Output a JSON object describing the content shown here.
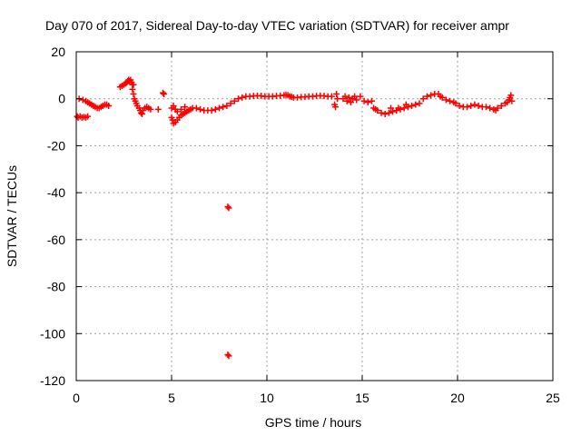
{
  "chart_data": {
    "type": "scatter",
    "title": "Day 070 of 2017, Sidereal Day-to-day VTEC variation (SDTVAR) for receiver ampr",
    "xlabel": "GPS time / hours",
    "ylabel": "SDTVAR / TECUs",
    "xlim": [
      0,
      25
    ],
    "ylim": [
      -120,
      20
    ],
    "x_ticks": [
      0,
      5,
      10,
      15,
      20,
      25
    ],
    "y_ticks": [
      20,
      0,
      -20,
      -40,
      -60,
      -80,
      -100,
      -120
    ],
    "x_tick_labels": [
      "0",
      "5",
      "10",
      "15",
      "20",
      "25"
    ],
    "y_tick_labels": [
      "20",
      "0",
      "-20",
      "-40",
      "-60",
      "-80",
      "-100",
      "-120"
    ],
    "grid": true,
    "marker": "plus",
    "color": "#ff0000",
    "series": [
      {
        "name": "SDTVAR",
        "points": [
          [
            0.05,
            -7.5
          ],
          [
            0.1,
            -8
          ],
          [
            0.15,
            0
          ],
          [
            0.2,
            -7.5
          ],
          [
            0.3,
            -8
          ],
          [
            0.4,
            -7.8
          ],
          [
            0.5,
            -8
          ],
          [
            0.6,
            -7.5
          ],
          [
            0.35,
            -0.5
          ],
          [
            0.5,
            -1
          ],
          [
            0.6,
            -1.5
          ],
          [
            0.7,
            -2
          ],
          [
            0.8,
            -2.5
          ],
          [
            0.9,
            -3
          ],
          [
            1.0,
            -3.5
          ],
          [
            1.1,
            -4
          ],
          [
            1.2,
            -4
          ],
          [
            1.3,
            -3.5
          ],
          [
            1.4,
            -3
          ],
          [
            1.5,
            -2.5
          ],
          [
            1.6,
            -2.5
          ],
          [
            1.7,
            -3
          ],
          [
            2.3,
            5
          ],
          [
            2.4,
            5.5
          ],
          [
            2.5,
            6
          ],
          [
            2.6,
            6.5
          ],
          [
            2.65,
            7
          ],
          [
            2.7,
            7.5
          ],
          [
            2.75,
            8
          ],
          [
            2.8,
            7.5
          ],
          [
            2.85,
            8
          ],
          [
            2.9,
            7
          ],
          [
            2.95,
            6
          ],
          [
            3.0,
            6
          ],
          [
            2.95,
            4
          ],
          [
            3.0,
            2
          ],
          [
            3.05,
            0
          ],
          [
            3.1,
            -1
          ],
          [
            3.15,
            -2
          ],
          [
            3.2,
            -3
          ],
          [
            3.3,
            -4
          ],
          [
            3.35,
            -5
          ],
          [
            3.4,
            -6
          ],
          [
            3.45,
            -6.5
          ],
          [
            3.5,
            -5
          ],
          [
            3.6,
            -4
          ],
          [
            3.7,
            -3.5
          ],
          [
            3.8,
            -4
          ],
          [
            3.9,
            -4.5
          ],
          [
            4.3,
            -4.5
          ],
          [
            4.55,
            2.5
          ],
          [
            4.6,
            2
          ],
          [
            5.0,
            -8
          ],
          [
            5.05,
            -9
          ],
          [
            5.1,
            -10.5
          ],
          [
            5.2,
            -10
          ],
          [
            5.3,
            -9
          ],
          [
            5.4,
            -8
          ],
          [
            5.5,
            -7
          ],
          [
            5.6,
            -6.5
          ],
          [
            5.7,
            -6
          ],
          [
            5.8,
            -5.5
          ],
          [
            5.9,
            -5
          ],
          [
            6.0,
            -4.5
          ],
          [
            6.1,
            -4
          ],
          [
            5.0,
            -4
          ],
          [
            5.1,
            -3
          ],
          [
            5.2,
            -4.5
          ],
          [
            5.3,
            -5.5
          ],
          [
            5.5,
            -4.5
          ],
          [
            5.7,
            -3.5
          ],
          [
            6.3,
            -4
          ],
          [
            6.5,
            -4.5
          ],
          [
            6.7,
            -5
          ],
          [
            6.9,
            -5
          ],
          [
            7.1,
            -5
          ],
          [
            7.3,
            -4.5
          ],
          [
            7.5,
            -4
          ],
          [
            7.7,
            -3.5
          ],
          [
            7.9,
            -3
          ],
          [
            8.1,
            -2
          ],
          [
            8.3,
            -1
          ],
          [
            8.5,
            0
          ],
          [
            8.7,
            0.5
          ],
          [
            8.9,
            1
          ],
          [
            8.0,
            -46.5
          ],
          [
            7.95,
            -46
          ],
          [
            8.0,
            -109.5
          ],
          [
            7.95,
            -109
          ],
          [
            9.1,
            1
          ],
          [
            9.3,
            1.2
          ],
          [
            9.5,
            1.3
          ],
          [
            9.7,
            1.2
          ],
          [
            9.9,
            1
          ],
          [
            10.1,
            1
          ],
          [
            10.3,
            1
          ],
          [
            10.5,
            1.2
          ],
          [
            10.7,
            1.3
          ],
          [
            10.9,
            1.5
          ],
          [
            11.0,
            1.7
          ],
          [
            11.1,
            1.5
          ],
          [
            11.2,
            1
          ],
          [
            11.3,
            0.8
          ],
          [
            11.4,
            0.5
          ],
          [
            11.6,
            0.5
          ],
          [
            11.8,
            0.7
          ],
          [
            12.0,
            0.8
          ],
          [
            12.2,
            1
          ],
          [
            12.4,
            1
          ],
          [
            12.6,
            1.2
          ],
          [
            12.8,
            1.3
          ],
          [
            13.0,
            1.2
          ],
          [
            13.2,
            1
          ],
          [
            13.4,
            1
          ],
          [
            13.55,
            -2.5
          ],
          [
            13.6,
            -3.5
          ],
          [
            13.65,
            2
          ],
          [
            13.7,
            0
          ],
          [
            14.0,
            0
          ],
          [
            14.1,
            1
          ],
          [
            14.2,
            -1
          ],
          [
            14.3,
            0.5
          ],
          [
            14.4,
            -1.5
          ],
          [
            14.5,
            0
          ],
          [
            14.6,
            1
          ],
          [
            14.7,
            -0.5
          ],
          [
            14.9,
            1
          ],
          [
            15.1,
            -1
          ],
          [
            15.3,
            -1.5
          ],
          [
            15.5,
            -1
          ],
          [
            15.6,
            -4
          ],
          [
            15.7,
            -4.5
          ],
          [
            15.8,
            -5
          ],
          [
            16.0,
            -6
          ],
          [
            16.2,
            -6.5
          ],
          [
            16.4,
            -6
          ],
          [
            16.6,
            -5.5
          ],
          [
            16.8,
            -5
          ],
          [
            17.0,
            -4.5
          ],
          [
            17.2,
            -4
          ],
          [
            17.4,
            -3.5
          ],
          [
            17.6,
            -3
          ],
          [
            17.8,
            -2.5
          ],
          [
            18.0,
            -2
          ],
          [
            16.5,
            -4
          ],
          [
            16.9,
            -4
          ],
          [
            17.3,
            -2.5
          ],
          [
            18.2,
            0
          ],
          [
            18.4,
            1
          ],
          [
            18.6,
            1.5
          ],
          [
            18.8,
            2
          ],
          [
            19.0,
            2
          ],
          [
            19.1,
            1
          ],
          [
            19.2,
            0.5
          ],
          [
            19.4,
            -0.5
          ],
          [
            19.6,
            -1
          ],
          [
            19.8,
            -1.5
          ],
          [
            19.9,
            -2
          ],
          [
            20.1,
            -3
          ],
          [
            20.3,
            -3.5
          ],
          [
            20.5,
            -3.5
          ],
          [
            20.7,
            -3
          ],
          [
            20.9,
            -2.5
          ],
          [
            21.1,
            -3
          ],
          [
            21.3,
            -3.5
          ],
          [
            21.5,
            -3.5
          ],
          [
            21.7,
            -4
          ],
          [
            21.9,
            -4.5
          ],
          [
            22.0,
            -5
          ],
          [
            22.1,
            -4
          ],
          [
            22.3,
            -3
          ],
          [
            22.5,
            -2
          ],
          [
            22.6,
            -1.5
          ],
          [
            22.7,
            -0.5
          ],
          [
            22.75,
            0.5
          ],
          [
            22.8,
            1.5
          ],
          [
            22.85,
            -1
          ]
        ]
      }
    ]
  }
}
